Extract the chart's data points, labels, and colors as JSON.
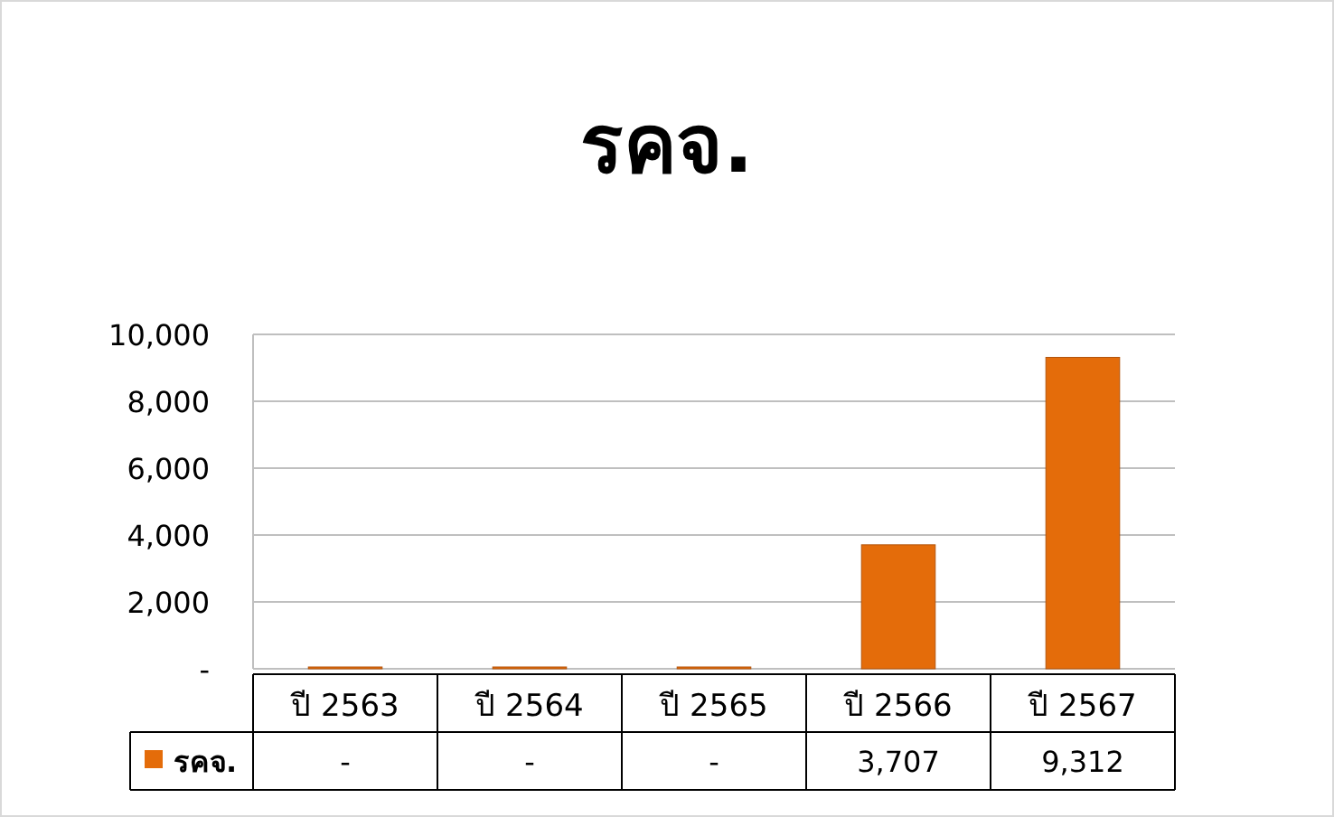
{
  "chart_data": {
    "type": "bar",
    "title": "รคจ.",
    "categories": [
      "ปี 2563",
      "ปี 2564",
      "ปี 2565",
      "ปี 2566",
      "ปี 2567"
    ],
    "series": [
      {
        "name": "รคจ.",
        "color": "#e46c0a",
        "values": [
          0,
          0,
          0,
          3707,
          9312
        ],
        "value_labels": [
          "-",
          "-",
          "-",
          "3,707",
          "9,312"
        ]
      }
    ],
    "ylim": [
      0,
      10000
    ],
    "yticks": [
      {
        "value": 0,
        "label": "-"
      },
      {
        "value": 2000,
        "label": "2,000"
      },
      {
        "value": 4000,
        "label": "4,000"
      },
      {
        "value": 6000,
        "label": "6,000"
      },
      {
        "value": 8000,
        "label": "8,000"
      },
      {
        "value": 10000,
        "label": "10,000"
      }
    ],
    "grid": "y",
    "legend": "bottom"
  }
}
